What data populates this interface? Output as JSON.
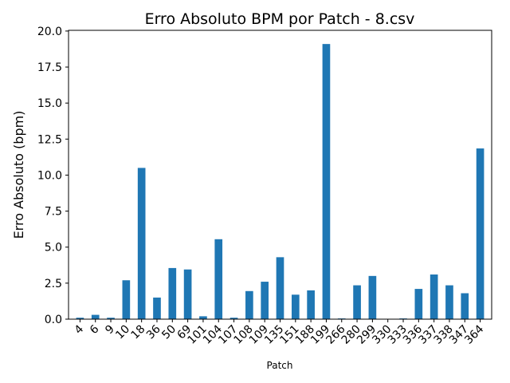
{
  "chart_data": {
    "type": "bar",
    "title": "Erro Absoluto BPM por Patch - 8.csv",
    "xlabel": "Patch",
    "ylabel": "Erro Absoluto (bpm)",
    "ylim": [
      0,
      20.05
    ],
    "yticks": [
      "0.0",
      "2.5",
      "5.0",
      "7.5",
      "10.0",
      "12.5",
      "15.0",
      "17.5",
      "20.0"
    ],
    "ytick_values": [
      0,
      2.5,
      5,
      7.5,
      10,
      12.5,
      15,
      17.5,
      20
    ],
    "grid": false,
    "bar_color": "#1f77b4",
    "categories": [
      "4",
      "6",
      "9",
      "10",
      "18",
      "36",
      "50",
      "69",
      "101",
      "104",
      "107",
      "108",
      "109",
      "135",
      "151",
      "188",
      "199",
      "266",
      "280",
      "299",
      "330",
      "333",
      "336",
      "337",
      "338",
      "347",
      "364"
    ],
    "values": [
      0.1,
      0.3,
      0.1,
      2.7,
      10.5,
      1.5,
      3.55,
      3.45,
      0.2,
      5.55,
      0.1,
      1.95,
      2.6,
      4.3,
      1.7,
      2.0,
      19.1,
      0.05,
      2.35,
      3.0,
      0.0,
      0.05,
      2.1,
      3.1,
      2.35,
      1.8,
      11.85
    ]
  }
}
